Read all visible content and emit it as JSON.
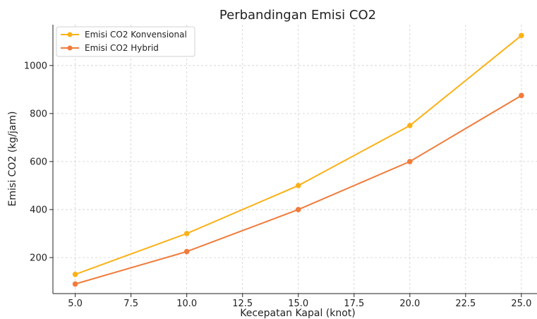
{
  "chart_data": {
    "type": "line",
    "title": "Perbandingan Emisi CO2",
    "xlabel": "Kecepatan Kapal (knot)",
    "ylabel": "Emisi CO2 (kg/jam)",
    "x": [
      5,
      10,
      15,
      20,
      25
    ],
    "xlim": [
      4,
      25.7
    ],
    "ylim": [
      50,
      1170
    ],
    "xticks": [
      5.0,
      7.5,
      10.0,
      12.5,
      15.0,
      17.5,
      20.0,
      22.5,
      25.0
    ],
    "xtick_labels": [
      "5.0",
      "7.5",
      "10.0",
      "12.5",
      "15.0",
      "17.5",
      "20.0",
      "22.5",
      "25.0"
    ],
    "yticks": [
      200,
      400,
      600,
      800,
      1000
    ],
    "ytick_labels": [
      "200",
      "400",
      "600",
      "800",
      "1000"
    ],
    "grid": true,
    "legend_position": "top-left",
    "series": [
      {
        "name": "Emisi CO2 Konvensional",
        "color": "#FBB117",
        "values": [
          130,
          300,
          500,
          750,
          1125
        ]
      },
      {
        "name": "Emisi CO2 Hybrid",
        "color": "#F07B3A",
        "values": [
          90,
          225,
          400,
          600,
          875
        ]
      }
    ]
  }
}
